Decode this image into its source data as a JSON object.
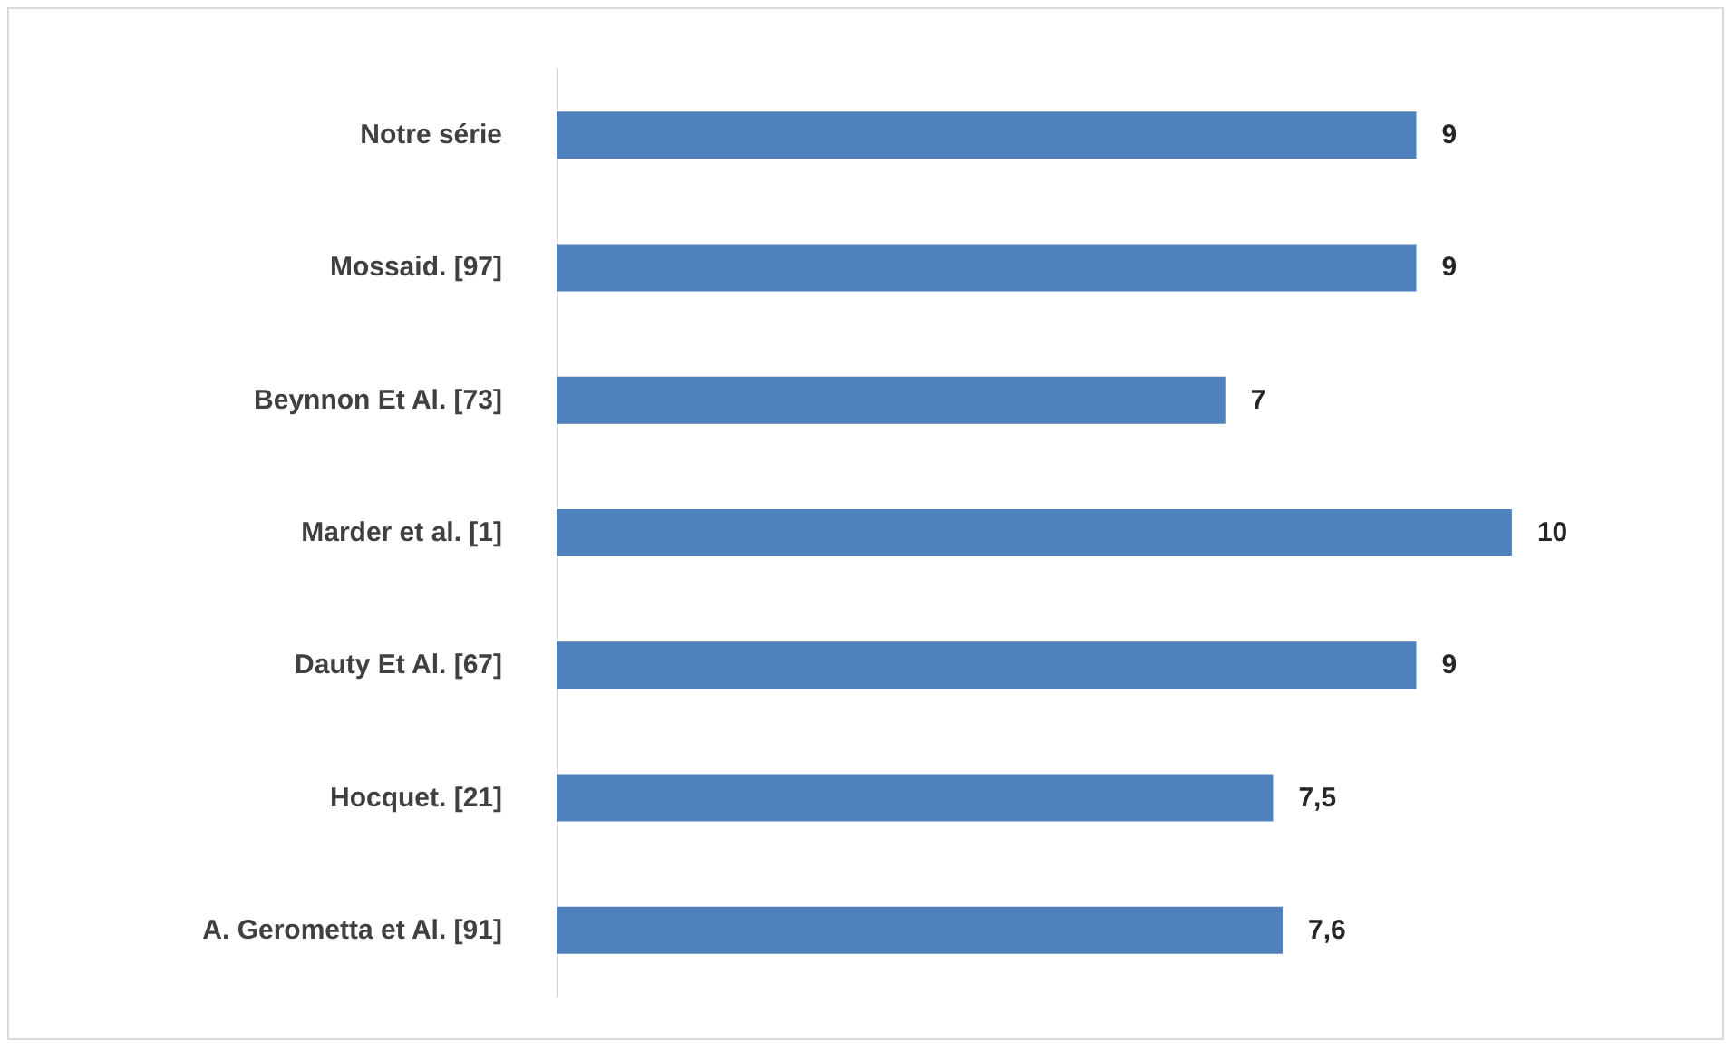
{
  "chart_data": {
    "type": "bar",
    "orientation": "horizontal",
    "categories": [
      "Notre série",
      "Mossaid. [97]",
      "Beynnon Et Al. [73]",
      "Marder et al. [1]",
      "Dauty Et Al. [67]",
      "Hocquet. [21]",
      "A. Gerometta et Al. [91]"
    ],
    "values": [
      9,
      9,
      7,
      10,
      9,
      7.5,
      7.6
    ],
    "value_labels": [
      "9",
      "9",
      "7",
      "10",
      "9",
      "7,5",
      "7,6"
    ],
    "color": "#4f81bd"
  }
}
